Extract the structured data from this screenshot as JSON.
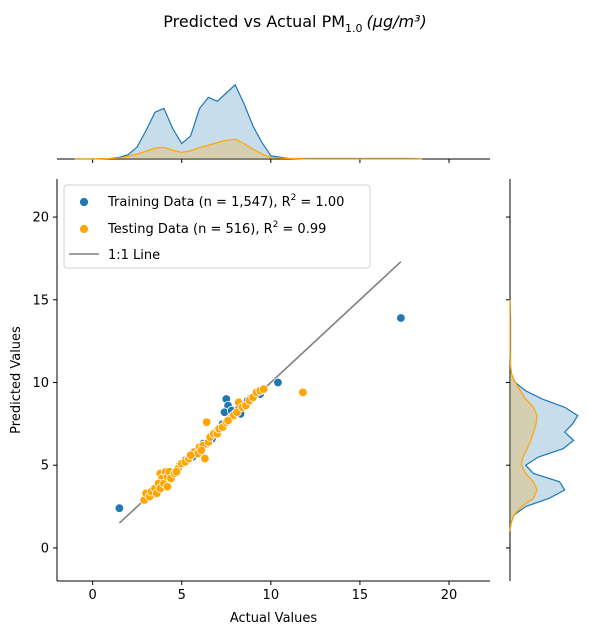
{
  "chart_data": {
    "type": "scatter",
    "title_main": "Predicted vs Actual PM",
    "title_sub": "1.0",
    "title_unit": "(μg/m³)",
    "xlabel": "Actual Values",
    "ylabel": "Predicted Values",
    "xlim": [
      -2,
      22.3
    ],
    "ylim": [
      -2,
      22.3
    ],
    "xticks": [
      0,
      5,
      10,
      15,
      20
    ],
    "yticks": [
      0,
      5,
      10,
      15,
      20
    ],
    "grid": false,
    "legend_position": "top-left",
    "legend": {
      "training_label": "Training Data (n = 1,547), R",
      "training_r2": "= 1.00",
      "testing_label": "Testing Data (n = 516), R",
      "testing_r2": "= 0.99",
      "line_label": "1:1 Line",
      "superscript": "2"
    },
    "colors": {
      "training": "#1f77b4",
      "testing": "#ffa500",
      "line": "#808080"
    },
    "one_to_one_line": {
      "x": [
        1.5,
        17.3
      ],
      "y": [
        1.5,
        17.3
      ]
    },
    "series": [
      {
        "name": "Training Data (n = 1,547), R² = 1.00",
        "points": [
          [
            1.5,
            2.4
          ],
          [
            17.3,
            13.9
          ],
          [
            10.4,
            10.0
          ],
          [
            7.5,
            9.0
          ],
          [
            7.6,
            8.6
          ],
          [
            7.4,
            8.2
          ],
          [
            7.8,
            8.3
          ],
          [
            8.0,
            8.1
          ],
          [
            8.2,
            8.4
          ],
          [
            8.5,
            8.7
          ],
          [
            8.8,
            9.0
          ],
          [
            9.1,
            9.2
          ],
          [
            6.4,
            6.3
          ],
          [
            6.7,
            6.6
          ],
          [
            6.0,
            6.0
          ],
          [
            5.6,
            5.5
          ],
          [
            4.9,
            5.0
          ],
          [
            4.5,
            4.4
          ],
          [
            4.0,
            4.0
          ],
          [
            3.7,
            3.7
          ],
          [
            3.4,
            3.5
          ],
          [
            3.1,
            3.1
          ],
          [
            5.2,
            5.3
          ],
          [
            6.2,
            6.3
          ],
          [
            7.0,
            7.1
          ],
          [
            7.3,
            7.5
          ],
          [
            8.3,
            8.1
          ],
          [
            8.7,
            8.9
          ],
          [
            9.4,
            9.3
          ],
          [
            3.9,
            3.8
          ]
        ]
      },
      {
        "name": "Testing Data (n = 516), R² = 0.99",
        "points": [
          [
            11.8,
            9.4
          ],
          [
            6.4,
            7.6
          ],
          [
            6.3,
            5.4
          ],
          [
            3.8,
            4.5
          ],
          [
            3.9,
            4.2
          ],
          [
            4.1,
            4.6
          ],
          [
            2.9,
            2.9
          ],
          [
            3.0,
            3.3
          ],
          [
            3.2,
            3.1
          ],
          [
            3.3,
            3.4
          ],
          [
            3.5,
            3.6
          ],
          [
            3.6,
            3.3
          ],
          [
            3.7,
            3.9
          ],
          [
            3.8,
            3.6
          ],
          [
            4.0,
            3.9
          ],
          [
            4.2,
            4.3
          ],
          [
            4.3,
            4.6
          ],
          [
            4.4,
            4.2
          ],
          [
            4.6,
            4.5
          ],
          [
            4.8,
            4.8
          ],
          [
            5.0,
            5.1
          ],
          [
            5.2,
            5.2
          ],
          [
            5.4,
            5.4
          ],
          [
            5.7,
            5.8
          ],
          [
            5.9,
            5.7
          ],
          [
            6.0,
            6.1
          ],
          [
            6.2,
            6.2
          ],
          [
            6.5,
            6.4
          ],
          [
            6.6,
            6.7
          ],
          [
            6.8,
            6.9
          ],
          [
            7.0,
            6.9
          ],
          [
            7.1,
            7.2
          ],
          [
            7.3,
            7.3
          ],
          [
            7.5,
            7.6
          ],
          [
            7.7,
            7.8
          ],
          [
            7.9,
            8.0
          ],
          [
            8.1,
            8.2
          ],
          [
            8.2,
            8.8
          ],
          [
            8.4,
            8.5
          ],
          [
            8.6,
            8.6
          ],
          [
            8.8,
            8.9
          ],
          [
            9.0,
            9.1
          ],
          [
            9.2,
            9.4
          ],
          [
            9.4,
            9.5
          ],
          [
            9.6,
            9.6
          ],
          [
            4.2,
            3.7
          ],
          [
            4.7,
            4.6
          ],
          [
            5.5,
            5.6
          ],
          [
            6.1,
            5.9
          ],
          [
            7.6,
            7.7
          ]
        ]
      }
    ],
    "marginal_x": {
      "grid_x": [
        -1,
        0,
        1,
        1.5,
        2,
        2.5,
        3,
        3.5,
        4,
        4.5,
        5,
        5.5,
        6,
        6.5,
        7,
        7.5,
        8,
        8.5,
        9,
        9.5,
        10,
        11,
        12,
        13,
        14,
        15,
        16,
        17,
        18,
        18.5
      ],
      "training": [
        0,
        0,
        0.01,
        0.03,
        0.08,
        0.22,
        0.52,
        0.85,
        0.92,
        0.55,
        0.28,
        0.42,
        0.92,
        1.12,
        1.05,
        1.2,
        1.35,
        1.0,
        0.6,
        0.3,
        0.06,
        0.01,
        0.01,
        0.01,
        0.01,
        0.01,
        0.01,
        0.01,
        0.01,
        0
      ],
      "testing": [
        0,
        0,
        0.01,
        0.02,
        0.05,
        0.09,
        0.14,
        0.2,
        0.21,
        0.16,
        0.12,
        0.15,
        0.21,
        0.25,
        0.3,
        0.34,
        0.36,
        0.28,
        0.18,
        0.09,
        0.03,
        0.01,
        0,
        0,
        0,
        0,
        0,
        0,
        0,
        0
      ]
    },
    "marginal_y": {
      "grid_y": [
        1,
        1.5,
        2,
        2.5,
        3,
        3.5,
        4,
        4.5,
        5,
        5.5,
        6,
        6.5,
        7,
        7.5,
        8,
        8.5,
        9,
        9.5,
        10,
        10.5,
        11,
        12,
        13,
        14,
        15
      ],
      "training": [
        0,
        0.02,
        0.08,
        0.3,
        0.75,
        1.05,
        0.95,
        0.45,
        0.3,
        0.55,
        1.02,
        1.22,
        1.05,
        1.2,
        1.3,
        1.05,
        0.62,
        0.3,
        0.1,
        0.03,
        0.01,
        0.01,
        0.01,
        0.01,
        0
      ],
      "testing": [
        0,
        0.02,
        0.08,
        0.22,
        0.45,
        0.52,
        0.45,
        0.3,
        0.22,
        0.25,
        0.33,
        0.4,
        0.45,
        0.5,
        0.52,
        0.45,
        0.3,
        0.2,
        0.1,
        0.03,
        0.01,
        0,
        0,
        0,
        0
      ]
    }
  }
}
